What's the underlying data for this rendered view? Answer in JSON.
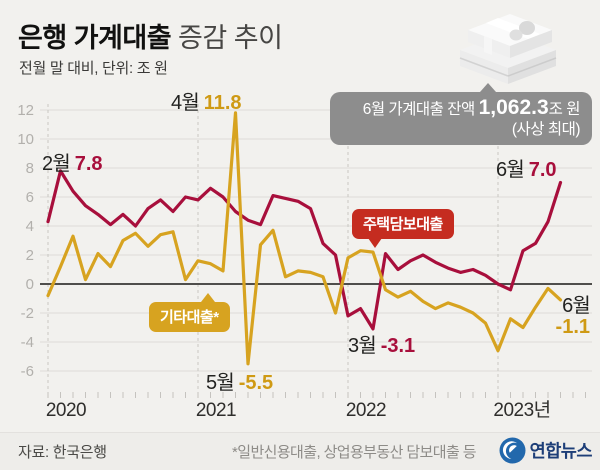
{
  "title": {
    "bold": "은행 가계대출",
    "rest": " 증감 추이",
    "subtitle": "전월 말 대비, 단위: 조 원"
  },
  "balance_box": {
    "prefix": "6월 가계대출 잔액 ",
    "value": "1,062.3",
    "suffix": "조 원",
    "note": "(사상 최대)"
  },
  "bubbles": {
    "red": "주택담보대출",
    "gold": "기타대출*"
  },
  "annotations": {
    "feb78": {
      "month": "2월",
      "value": "7.8"
    },
    "apr118": {
      "month": "4월",
      "value": "11.8"
    },
    "may55": {
      "month": "5월",
      "value": "-5.5"
    },
    "mar31": {
      "month": "3월",
      "value": "-3.1"
    },
    "jun70": {
      "month": "6월",
      "value": "7.0"
    },
    "jun11": {
      "month": "6월",
      "value": "-1.1"
    }
  },
  "footer": {
    "source": "자료: 한국은행",
    "note": "*일반신용대출, 상업용부동산 담보대출 등",
    "logo_text": "연합뉴스"
  },
  "colors": {
    "background": "#f2f1ee",
    "mortgage_line": "#a80f3c",
    "other_line": "#d7a320",
    "red_bubble": "#c52c20",
    "gray_box": "#8d8d8d",
    "yonhap_blue": "#2268ac"
  },
  "chart_data": {
    "type": "line",
    "title": "은행 가계대출 증감 추이",
    "ylabel": "전월 말 대비 (조 원)",
    "x_start": "2020-01",
    "x_end": "2023-06",
    "x_freq": "monthly",
    "x_years": [
      "2020",
      "2021",
      "2022",
      "2023년"
    ],
    "y_ticks": [
      12,
      10,
      8,
      6,
      4,
      2,
      0,
      -2,
      -4,
      -6
    ],
    "ylim": [
      -7,
      13
    ],
    "grid": true,
    "series": [
      {
        "id": "mortgage-loans",
        "name": "주택담보대출",
        "color": "#a80f3c",
        "values": [
          4.3,
          7.8,
          6.4,
          5.4,
          4.8,
          4.1,
          4.8,
          4.0,
          5.2,
          5.8,
          5.0,
          6.0,
          5.8,
          6.6,
          6.0,
          5.0,
          4.4,
          4.1,
          6.1,
          5.9,
          5.7,
          5.2,
          2.8,
          2.0,
          -2.2,
          -1.7,
          -3.1,
          2.1,
          1.0,
          1.6,
          2.0,
          1.5,
          1.1,
          0.8,
          1.0,
          0.6,
          0.0,
          -0.4,
          2.3,
          2.8,
          4.3,
          7.0
        ]
      },
      {
        "id": "other-loans",
        "name": "기타대출*",
        "color": "#d7a320",
        "values": [
          -0.8,
          1.2,
          3.3,
          0.3,
          2.1,
          1.2,
          3.0,
          3.5,
          2.6,
          3.4,
          3.6,
          0.3,
          1.6,
          1.4,
          0.9,
          11.8,
          -5.5,
          2.7,
          3.7,
          0.5,
          0.9,
          0.8,
          0.5,
          -2.0,
          1.8,
          2.3,
          2.2,
          -0.4,
          -0.9,
          -0.5,
          -1.2,
          -1.7,
          -1.3,
          -1.6,
          -2.0,
          -2.7,
          -4.6,
          -2.4,
          -3.0,
          -1.6,
          -0.3,
          -1.1
        ]
      }
    ],
    "annotated_points": [
      {
        "series": "주택담보대출",
        "month": "2020-02",
        "label": "2월",
        "value": 7.8
      },
      {
        "series": "기타대출*",
        "month": "2021-04",
        "label": "4월",
        "value": 11.8
      },
      {
        "series": "기타대출*",
        "month": "2021-05",
        "label": "5월",
        "value": -5.5
      },
      {
        "series": "주택담보대출",
        "month": "2022-03",
        "label": "3월",
        "value": -3.1
      },
      {
        "series": "주택담보대출",
        "month": "2023-06",
        "label": "6월",
        "value": 7.0
      },
      {
        "series": "기타대출*",
        "month": "2023-06",
        "label": "6월",
        "value": -1.1
      }
    ]
  }
}
